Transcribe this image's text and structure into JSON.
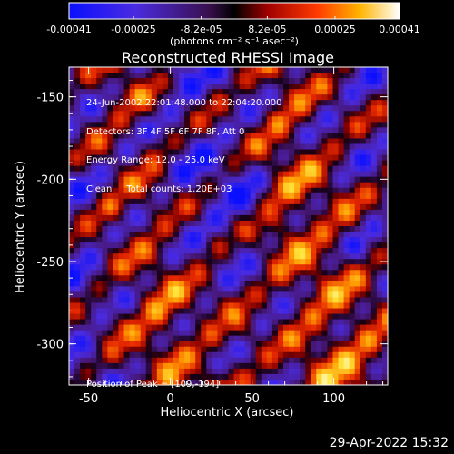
{
  "chart_data": {
    "type": "heatmap",
    "title": "Reconstructed RHESSI Image",
    "xlabel": "Heliocentric X (arcsec)",
    "ylabel": "Heliocentric Y (arcsec)",
    "xlim": [
      -62,
      133
    ],
    "ylim": [
      -325,
      -132
    ],
    "x_ticks": [
      -50,
      0,
      50,
      100
    ],
    "y_ticks": [
      -150,
      -200,
      -250,
      -300
    ],
    "colorbar": {
      "min": -0.00041,
      "max": 0.00041,
      "tick_labels": [
        "-0.00041",
        "-0.00025",
        "-8.2e-05",
        "8.2e-05",
        "0.00025",
        "0.00041"
      ],
      "unit_label": "(photons cm⁻² s⁻¹ asec⁻²)"
    },
    "colormap": "blue-purple-black-red-orange-yellow-white",
    "annotations": {
      "time_range": "24-Jun-2002 22:01:48.000 to 22:04:20.000",
      "detectors": "Detectors: 3F 4F 5F 6F 7F 8F, Att 0",
      "energy_range": "Energy Range: 12.0 - 25.0 keV",
      "clean_counts": "Clean     Total counts: 1.20E+03",
      "peak_position": "Position of Peak = [109,-194]"
    },
    "peak": {
      "x": 109,
      "y": -194
    },
    "grid": false
  },
  "timestamp": "29-Apr-2022 15:32"
}
